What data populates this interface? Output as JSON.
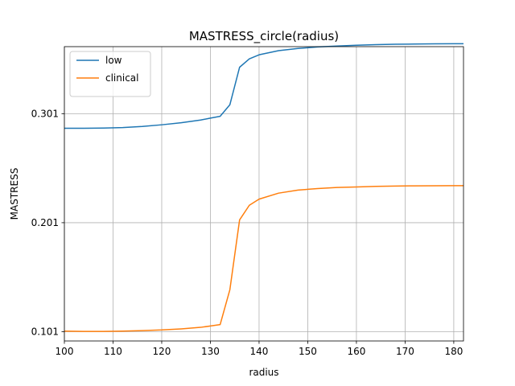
{
  "chart_data": {
    "type": "line",
    "title": "MASTRESS_circle(radius)",
    "xlabel": "radius",
    "ylabel": "MASTRESS",
    "xlim": [
      100,
      182
    ],
    "ylim": [
      0.0925,
      0.3625
    ],
    "xticks": [
      100,
      110,
      120,
      130,
      140,
      150,
      160,
      170,
      180
    ],
    "yticks": [
      0.101,
      0.201,
      0.301
    ],
    "ytick_labels": [
      "0.101",
      "0.201",
      "0.301"
    ],
    "grid": true,
    "legend_position": "top-left",
    "series": [
      {
        "name": "low",
        "color": "#1f77b4",
        "x": [
          100,
          104,
          108,
          112,
          116,
          120,
          124,
          128,
          130,
          132,
          134,
          136,
          138,
          140,
          144,
          148,
          152,
          156,
          160,
          164,
          168,
          172,
          176,
          180,
          182
        ],
        "y": [
          0.2876,
          0.2876,
          0.2878,
          0.2883,
          0.2893,
          0.2908,
          0.2927,
          0.2952,
          0.2969,
          0.2986,
          0.3092,
          0.3436,
          0.3513,
          0.355,
          0.3588,
          0.3608,
          0.3622,
          0.3631,
          0.3638,
          0.3643,
          0.3647,
          0.3649,
          0.3651,
          0.3652,
          0.3652
        ]
      },
      {
        "name": "clinical",
        "color": "#ff7f0e",
        "x": [
          100,
          104,
          108,
          112,
          116,
          120,
          124,
          128,
          130,
          132,
          134,
          136,
          138,
          140,
          144,
          148,
          152,
          156,
          160,
          164,
          168,
          172,
          176,
          180,
          182
        ],
        "y": [
          0.1015,
          0.1013,
          0.1013,
          0.1015,
          0.102,
          0.1026,
          0.1036,
          0.105,
          0.1062,
          0.1075,
          0.1395,
          0.2036,
          0.217,
          0.2226,
          0.2281,
          0.2309,
          0.2323,
          0.2333,
          0.2338,
          0.2343,
          0.2346,
          0.2348,
          0.2349,
          0.235,
          0.235
        ]
      }
    ]
  }
}
